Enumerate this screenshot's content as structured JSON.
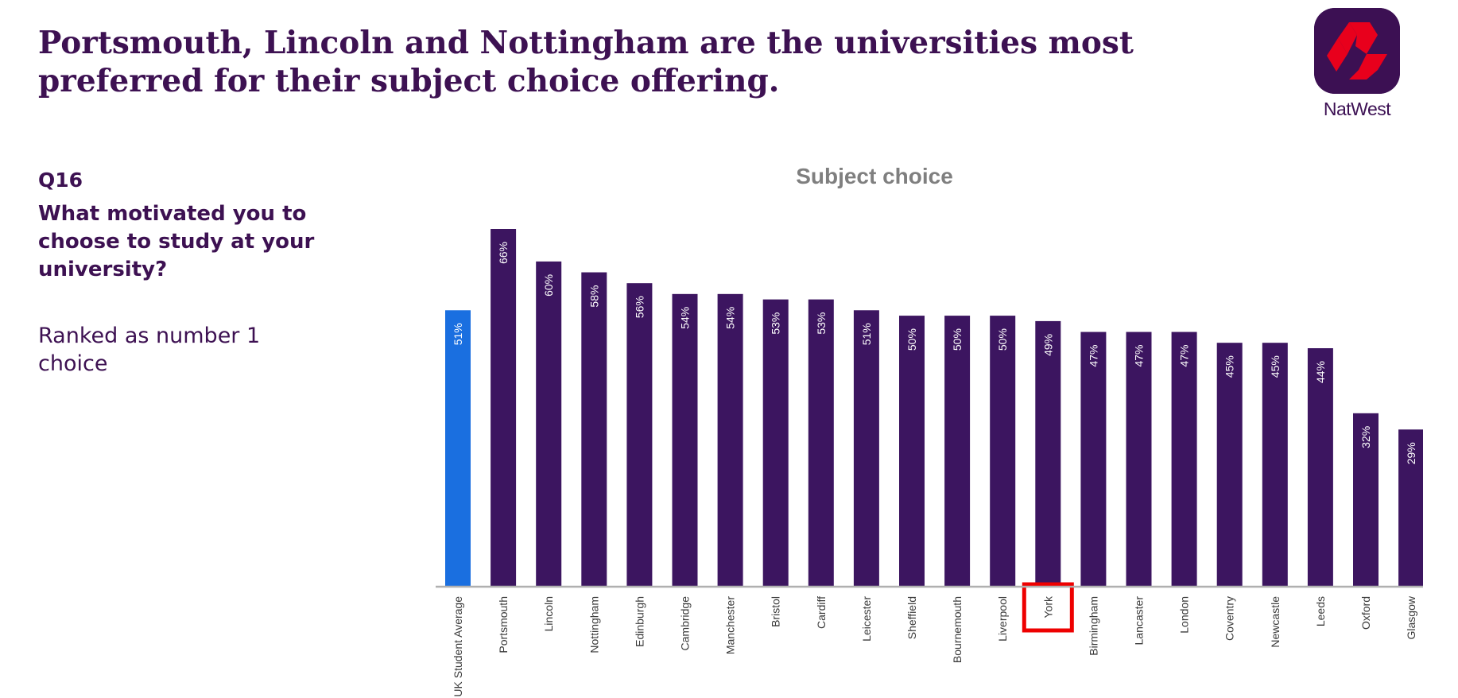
{
  "headline": "Portsmouth, Lincoln and Nottingham are the universities most preferred for their subject choice offering.",
  "logo": {
    "brand": "NatWest",
    "icon": "natwest-logo-icon",
    "tile_color": "#3c1053",
    "mark_color": "#e8001c"
  },
  "question": {
    "number": "Q16",
    "text": "What motivated you to choose to study at your university?",
    "note": "Ranked as number 1 choice"
  },
  "chart_data": {
    "type": "bar",
    "title": "Subject choice",
    "categories": [
      "UK Student Average",
      "Portsmouth",
      "Lincoln",
      "Nottingham",
      "Edinburgh",
      "Cambridge",
      "Manchester",
      "Bristol",
      "Cardiff",
      "Leicester",
      "Sheffield",
      "Bournemouth",
      "Liverpool",
      "York",
      "Birmingham",
      "Lancaster",
      "London",
      "Coventry",
      "Newcastle",
      "Leeds",
      "Oxford",
      "Glasgow"
    ],
    "values": [
      51,
      66,
      60,
      58,
      56,
      54,
      54,
      53,
      53,
      51,
      50,
      50,
      50,
      49,
      47,
      47,
      47,
      45,
      45,
      44,
      32,
      29
    ],
    "labels": [
      "51%",
      "66%",
      "60%",
      "58%",
      "56%",
      "54%",
      "54%",
      "53%",
      "53%",
      "51%",
      "50%",
      "50%",
      "50%",
      "49%",
      "47%",
      "47%",
      "47%",
      "45%",
      "45%",
      "44%",
      "32%",
      "29%"
    ],
    "highlighted_category": "York",
    "average_category": "UK Student Average",
    "xlabel": "",
    "ylabel": "",
    "ylim": [
      0,
      66
    ],
    "grid": false,
    "legend": "none",
    "colors": {
      "bar": "#3c1560",
      "average_bar": "#1a6fe0",
      "highlight_box": "#ee0000",
      "axis": "#b0b0b0",
      "bar_label": "#ffffff",
      "tick_label": "#3a3a3a"
    }
  }
}
